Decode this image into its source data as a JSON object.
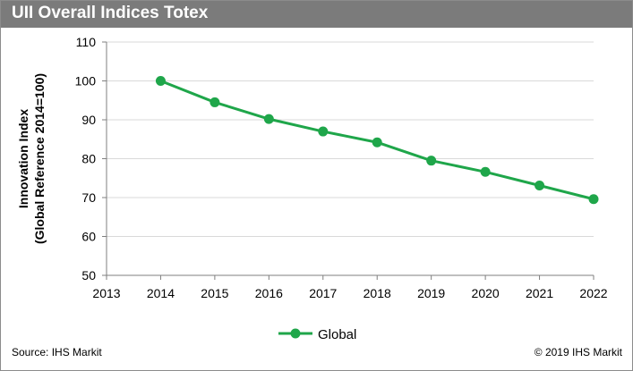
{
  "header": {
    "title": "UII Overall Indices Totex"
  },
  "footer": {
    "source": "Source: IHS Markit",
    "copyright": "© 2019 IHS Markit"
  },
  "colors": {
    "title_bar": "#7b7b7b",
    "series": "#1fa64a",
    "axis": "#7f7f7f",
    "grid": "#d9d9d9"
  },
  "chart_data": {
    "type": "line",
    "title": "UII Overall Indices Totex",
    "xlabel": "",
    "ylabel_lines": [
      "Innovation Index",
      "(Global Reference 2014=100)"
    ],
    "x_ticks": [
      "2013",
      "2014",
      "2015",
      "2016",
      "2017",
      "2018",
      "2019",
      "2020",
      "2021",
      "2022"
    ],
    "y_ticks": [
      "50",
      "60",
      "70",
      "80",
      "90",
      "100",
      "110"
    ],
    "xlim": [
      2013,
      2022
    ],
    "ylim": [
      50,
      110
    ],
    "grid": true,
    "legend": "bottom-center",
    "series": [
      {
        "name": "Global",
        "x": [
          2014,
          2015,
          2016,
          2017,
          2018,
          2019,
          2020,
          2021,
          2022
        ],
        "values": [
          100,
          94.5,
          90.2,
          87.0,
          84.2,
          79.5,
          76.6,
          73.1,
          69.6
        ]
      }
    ]
  }
}
